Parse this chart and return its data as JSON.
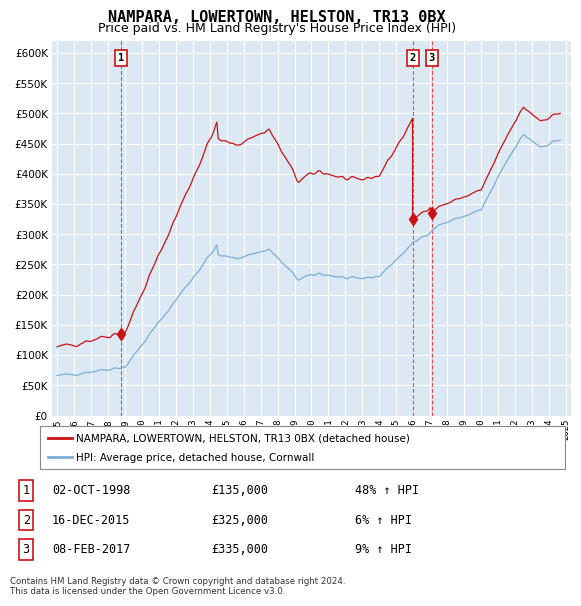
{
  "title": "NAMPARA, LOWERTOWN, HELSTON, TR13 0BX",
  "subtitle": "Price paid vs. HM Land Registry's House Price Index (HPI)",
  "title_fontsize": 11,
  "subtitle_fontsize": 9,
  "background_color": "#ffffff",
  "plot_bg_color": "#dce9f5",
  "grid_color": "#ffffff",
  "hpi_color": "#7aadd4",
  "price_color": "#cc1111",
  "marker_color": "#cc1111",
  "vline_color": "#dd3333",
  "ylim": [
    0,
    620000
  ],
  "yticks": [
    0,
    50000,
    100000,
    150000,
    200000,
    250000,
    300000,
    350000,
    400000,
    450000,
    500000,
    550000,
    600000
  ],
  "sales": [
    {
      "date_num": 1998.75,
      "price": 135000,
      "label": "1"
    },
    {
      "date_num": 2015.958,
      "price": 325000,
      "label": "2"
    },
    {
      "date_num": 2017.083,
      "price": 335000,
      "label": "3"
    }
  ],
  "legend_entries": [
    "NAMPARA, LOWERTOWN, HELSTON, TR13 0BX (detached house)",
    "HPI: Average price, detached house, Cornwall"
  ],
  "table_rows": [
    {
      "num": "1",
      "date": "02-OCT-1998",
      "price": "£135,000",
      "change": "48% ↑ HPI"
    },
    {
      "num": "2",
      "date": "16-DEC-2015",
      "price": "£325,000",
      "change": "6% ↑ HPI"
    },
    {
      "num": "3",
      "date": "08-FEB-2017",
      "price": "£335,000",
      "change": "9% ↑ HPI"
    }
  ],
  "footer": "Contains HM Land Registry data © Crown copyright and database right 2024.\nThis data is licensed under the Open Government Licence v3.0.",
  "xticks": [
    1995,
    1996,
    1997,
    1998,
    1999,
    2000,
    2001,
    2002,
    2003,
    2004,
    2005,
    2006,
    2007,
    2008,
    2009,
    2010,
    2011,
    2012,
    2013,
    2014,
    2015,
    2016,
    2017,
    2018,
    2019,
    2020,
    2021,
    2022,
    2023,
    2024,
    2025
  ],
  "xlim": [
    1994.7,
    2025.3
  ]
}
